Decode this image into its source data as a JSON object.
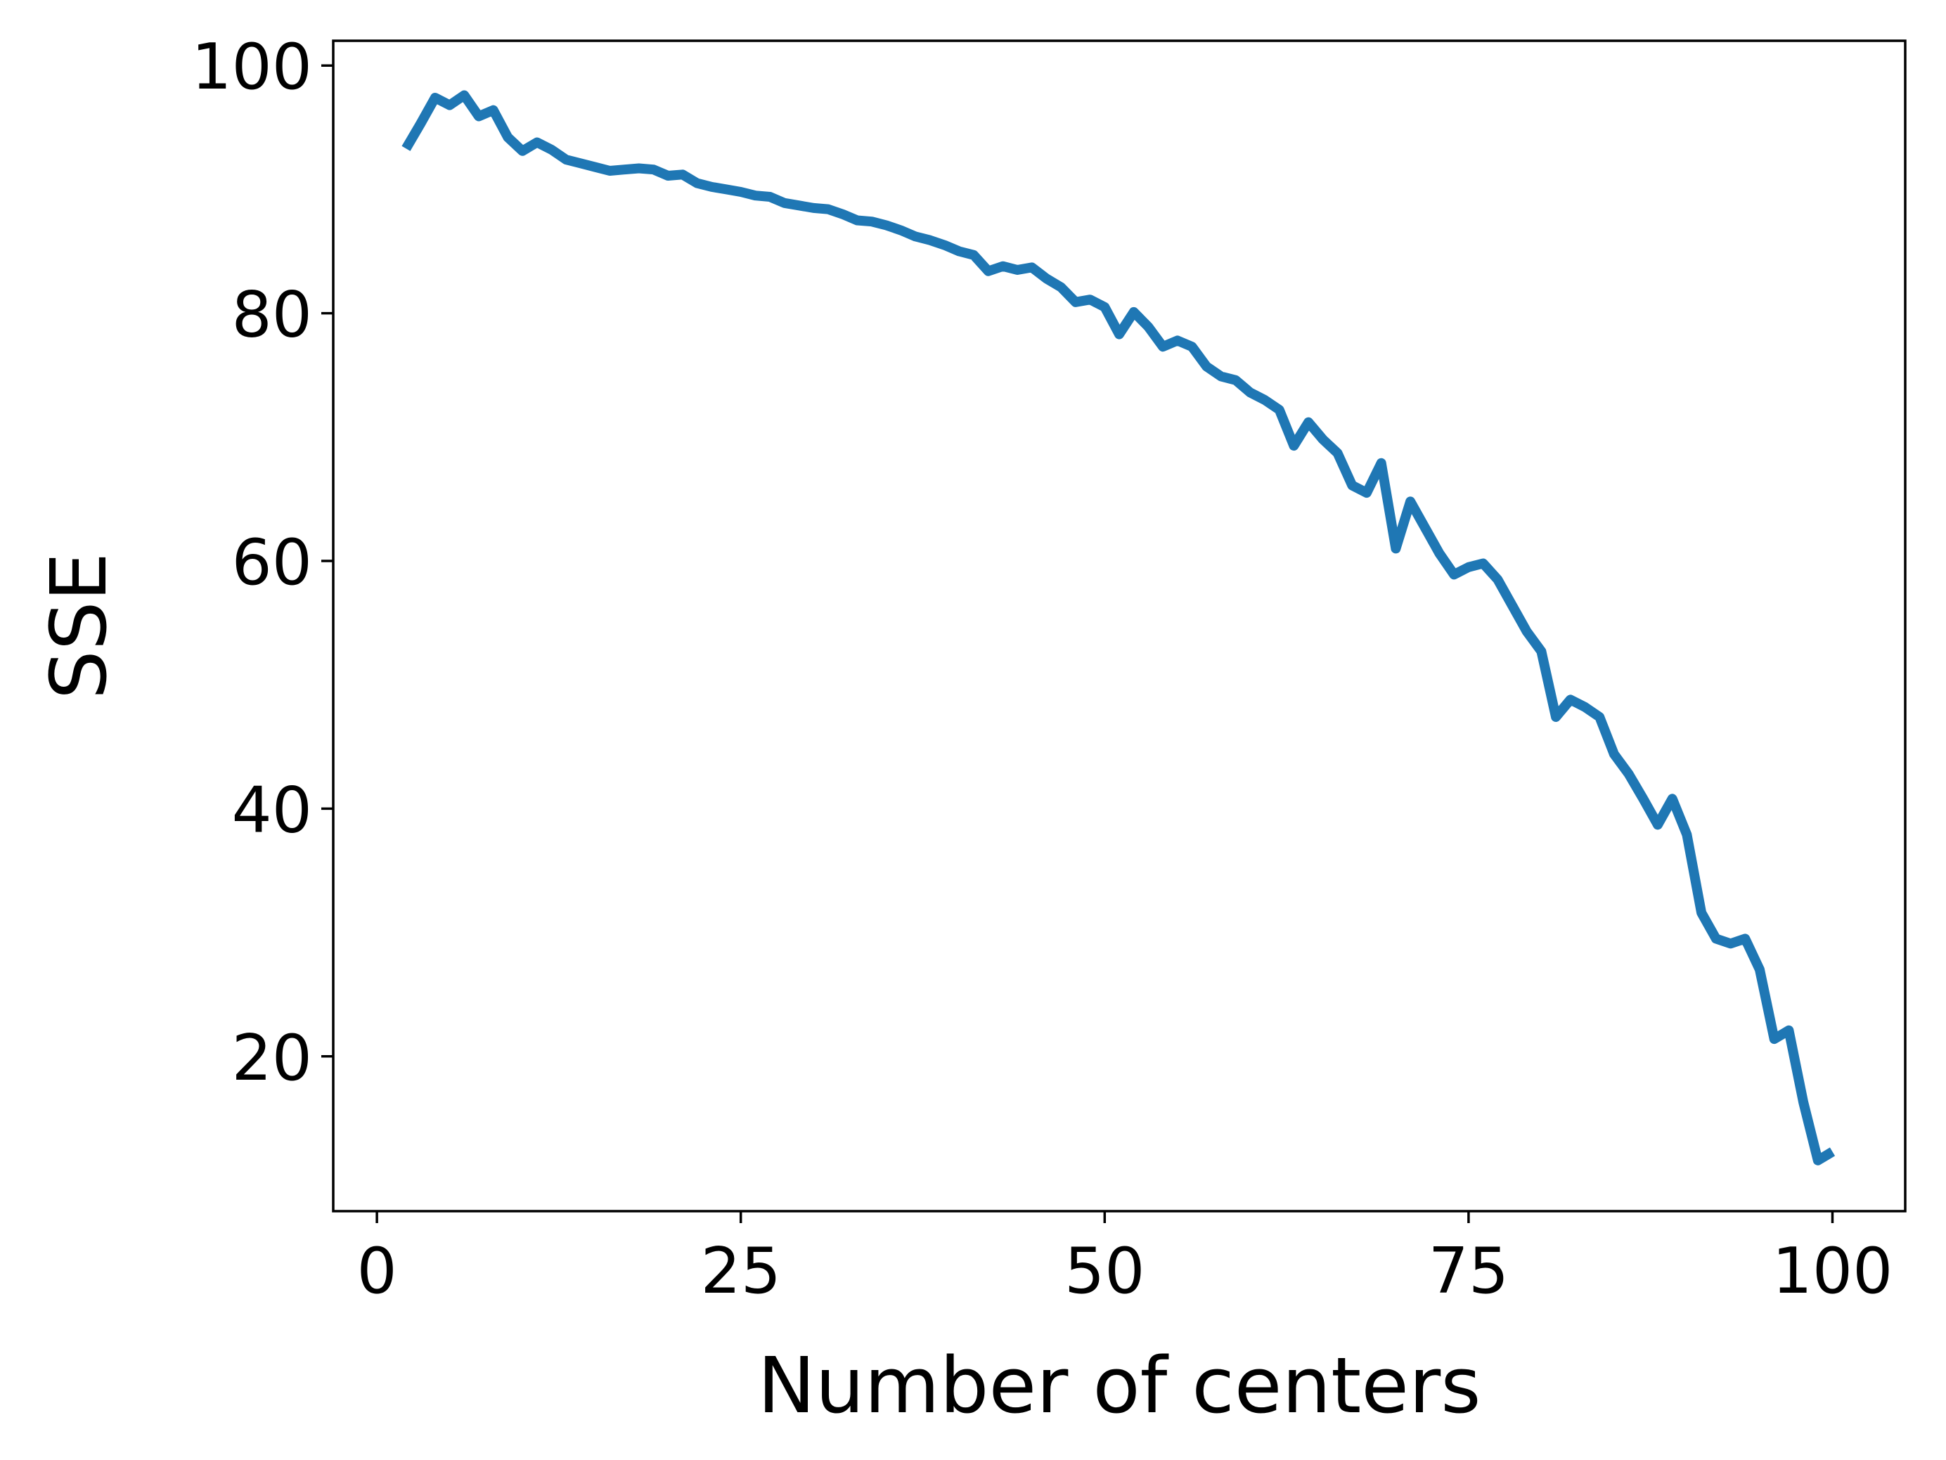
{
  "chart_data": {
    "type": "line",
    "title": "",
    "xlabel": "Number of centers",
    "ylabel": "SSE",
    "xlim": [
      -3,
      105
    ],
    "ylim": [
      7.5,
      102
    ],
    "xticks": [
      0,
      25,
      50,
      75,
      100
    ],
    "yticks": [
      20,
      40,
      60,
      80,
      100
    ],
    "grid": false,
    "series": [
      {
        "color": "#1f77b4",
        "x": [
          2,
          3,
          4,
          5,
          6,
          7,
          8,
          9,
          10,
          11,
          12,
          13,
          14,
          15,
          16,
          17,
          18,
          19,
          20,
          21,
          22,
          23,
          24,
          25,
          26,
          27,
          28,
          29,
          30,
          31,
          32,
          33,
          34,
          35,
          36,
          37,
          38,
          39,
          40,
          41,
          42,
          43,
          44,
          45,
          46,
          47,
          48,
          49,
          50,
          51,
          52,
          53,
          54,
          55,
          56,
          57,
          58,
          59,
          60,
          61,
          62,
          63,
          64,
          65,
          66,
          67,
          68,
          69,
          70,
          71,
          72,
          73,
          74,
          75,
          76,
          77,
          78,
          79,
          80,
          81,
          82,
          83,
          84,
          85,
          86,
          87,
          88,
          89,
          90,
          91,
          92,
          93,
          94,
          95,
          96,
          97,
          98,
          99,
          100
        ],
        "y": [
          93.3,
          95.3,
          97.4,
          96.8,
          97.6,
          95.9,
          96.4,
          94.2,
          93.1,
          93.8,
          93.2,
          92.4,
          92.1,
          91.8,
          91.5,
          91.6,
          91.7,
          91.6,
          91.1,
          91.2,
          90.5,
          90.2,
          90.0,
          89.8,
          89.5,
          89.4,
          88.9,
          88.7,
          88.5,
          88.4,
          88.0,
          87.5,
          87.4,
          87.1,
          86.7,
          86.2,
          85.9,
          85.5,
          85.0,
          84.7,
          83.4,
          83.8,
          83.5,
          83.7,
          82.8,
          82.1,
          80.9,
          81.1,
          80.5,
          78.3,
          80.1,
          78.9,
          77.3,
          77.8,
          77.3,
          75.7,
          74.9,
          74.6,
          73.6,
          73.0,
          72.2,
          69.3,
          71.2,
          69.8,
          68.7,
          66.1,
          65.5,
          67.9,
          61.0,
          64.8,
          62.7,
          60.6,
          58.9,
          59.5,
          59.8,
          58.5,
          56.4,
          54.3,
          52.7,
          47.4,
          48.8,
          48.2,
          47.4,
          44.4,
          42.8,
          40.8,
          38.7,
          40.8,
          37.9,
          31.6,
          29.5,
          29.1,
          29.5,
          27.0,
          21.4,
          22.1,
          16.3,
          11.6,
          12.3
        ]
      }
    ]
  }
}
